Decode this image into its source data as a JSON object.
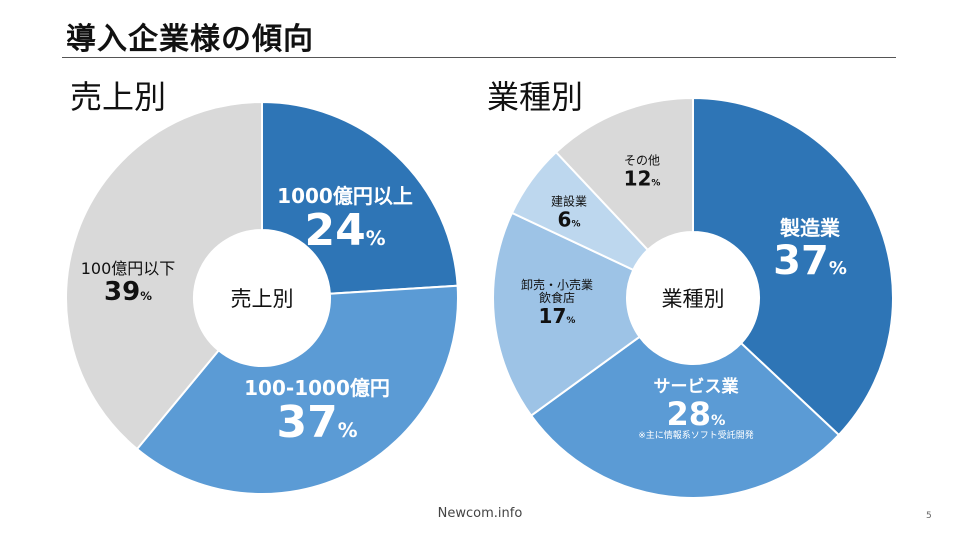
{
  "title": "導入企業様の傾向",
  "footer": "Newcom.info",
  "page_number": "5",
  "chart_data": [
    {
      "type": "pie",
      "donut": true,
      "section_title": "売上別",
      "center_label": "売上別",
      "unit": "%",
      "categories": [
        "1000億円以上",
        "100-1000億円",
        "100億円以下"
      ],
      "values": [
        24,
        37,
        39
      ],
      "colors": [
        "#2e75b6",
        "#5b9bd5",
        "#d9d9d9"
      ],
      "label_colors": [
        "#ffffff",
        "#ffffff",
        "#111111"
      ],
      "notes": [
        "",
        "",
        ""
      ]
    },
    {
      "type": "pie",
      "donut": true,
      "section_title": "業種別",
      "center_label": "業種別",
      "unit": "%",
      "categories": [
        "製造業",
        "サービス業",
        "卸売・小売業飲食店",
        "建設業",
        "その他"
      ],
      "category_lines": [
        [
          "製造業"
        ],
        [
          "サービス業"
        ],
        [
          "卸売・小売業",
          "飲食店"
        ],
        [
          "建設業"
        ],
        [
          "その他"
        ]
      ],
      "values": [
        37,
        28,
        17,
        6,
        12
      ],
      "colors": [
        "#2e75b6",
        "#5b9bd5",
        "#9dc3e6",
        "#bdd7ee",
        "#d9d9d9"
      ],
      "label_colors": [
        "#ffffff",
        "#ffffff",
        "#111111",
        "#111111",
        "#111111"
      ],
      "notes": [
        "",
        "※主に情報系ソフト受託開発",
        "",
        "",
        ""
      ]
    }
  ]
}
